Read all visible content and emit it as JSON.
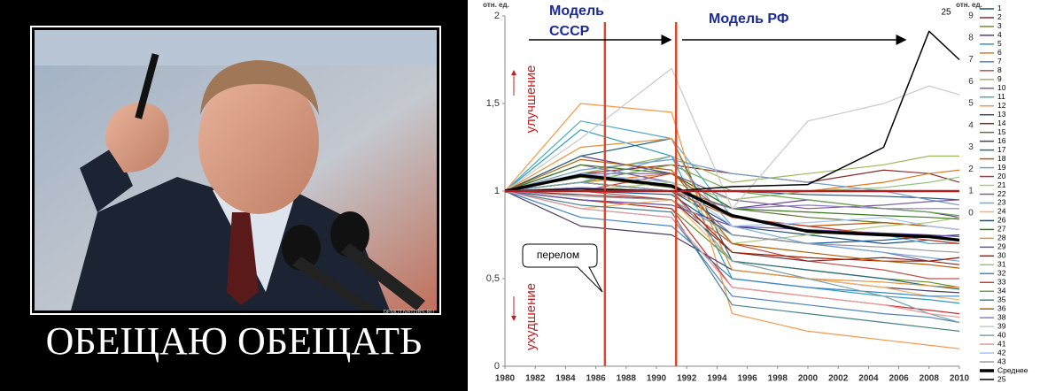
{
  "poster": {
    "caption": "ОБЕЩАЮ ОБЕЩАТЬ",
    "watermark": "DEMOTIVATORS.RU"
  },
  "chart_data": {
    "type": "line",
    "y_axis_label": "отн. ед.",
    "y2_axis_label": "отн. ед.",
    "annotations": {
      "model_ussr_1": "Модель",
      "model_ussr_2": "СССР",
      "model_rf": "Модель РФ",
      "better": "улучшение",
      "worse": "ухудшение",
      "turn": "перелом"
    },
    "x": [
      1980,
      1985,
      1991,
      1995,
      2000,
      2005,
      2008,
      2010
    ],
    "xlim": [
      1980,
      2010
    ],
    "xticks": [
      1980,
      1982,
      1984,
      1986,
      1988,
      1990,
      1992,
      1994,
      1996,
      1998,
      2000,
      2002,
      2004,
      2006,
      2008,
      2010
    ],
    "ylim": [
      0,
      2
    ],
    "yticks": [
      0,
      {
        "value": 0.5,
        "label": "0,5"
      },
      1,
      {
        "value": 1.5,
        "label": "1,5"
      },
      2
    ],
    "y2lim": [
      -7,
      9
    ],
    "y2ticks": [
      0,
      1,
      2,
      3,
      4,
      5,
      6,
      7,
      8,
      9
    ],
    "vlines": [
      1986.6,
      1991.3
    ],
    "vline_color": "#d9492a",
    "hline": 1,
    "hline_color": "#b02020",
    "series": [
      {
        "name": "1",
        "color": "#1f4e79",
        "values": [
          1,
          1.05,
          1.0,
          0.8,
          0.75,
          0.7,
          0.72,
          0.7
        ]
      },
      {
        "name": "2",
        "color": "#8b2a2a",
        "values": [
          1,
          1.1,
          1.15,
          1.1,
          1.05,
          1.12,
          1.1,
          1.05
        ]
      },
      {
        "name": "3",
        "color": "#6b8e23",
        "values": [
          1,
          0.95,
          0.9,
          0.6,
          0.55,
          0.5,
          0.48,
          0.45
        ]
      },
      {
        "name": "4",
        "color": "#5b3a8c",
        "values": [
          1,
          1.2,
          1.1,
          0.9,
          0.95,
          0.9,
          0.88,
          0.85
        ]
      },
      {
        "name": "5",
        "color": "#2e9bbf",
        "values": [
          1,
          1.35,
          1.2,
          0.5,
          0.45,
          0.4,
          0.38,
          0.36
        ]
      },
      {
        "name": "6",
        "color": "#e07b20",
        "values": [
          1,
          1.05,
          1.1,
          0.95,
          1.0,
          1.05,
          1.1,
          1.12
        ]
      },
      {
        "name": "7",
        "color": "#4f81bd",
        "values": [
          1,
          0.9,
          0.85,
          0.4,
          0.35,
          0.3,
          0.28,
          0.25
        ]
      },
      {
        "name": "8",
        "color": "#c0504d",
        "values": [
          1,
          1.0,
          0.95,
          0.7,
          0.6,
          0.55,
          0.5,
          0.5
        ]
      },
      {
        "name": "9",
        "color": "#9bbb59",
        "values": [
          1,
          1.1,
          1.2,
          1.05,
          1.1,
          1.15,
          1.2,
          1.2
        ]
      },
      {
        "name": "10",
        "color": "#8064a2",
        "values": [
          1,
          1.15,
          1.05,
          0.75,
          0.7,
          0.65,
          0.6,
          0.62
        ]
      },
      {
        "name": "11",
        "color": "#4bacc6",
        "values": [
          1,
          1.4,
          1.3,
          0.85,
          0.8,
          0.75,
          0.7,
          0.7
        ]
      },
      {
        "name": "12",
        "color": "#f79646",
        "values": [
          1,
          1.5,
          1.45,
          0.3,
          0.2,
          0.15,
          0.12,
          0.1
        ]
      },
      {
        "name": "13",
        "color": "#2c4d75",
        "values": [
          1,
          1.02,
          1.0,
          1.0,
          0.98,
          0.97,
          0.96,
          0.95
        ]
      },
      {
        "name": "14",
        "color": "#772c2a",
        "values": [
          1,
          0.98,
          0.95,
          0.65,
          0.6,
          0.62,
          0.6,
          0.58
        ]
      },
      {
        "name": "15",
        "color": "#5f7530",
        "values": [
          1,
          1.08,
          1.02,
          0.9,
          0.85,
          0.82,
          0.8,
          0.78
        ]
      },
      {
        "name": "16",
        "color": "#4d3b62",
        "values": [
          1,
          0.8,
          0.75,
          0.55,
          0.5,
          0.45,
          0.43,
          0.42
        ]
      },
      {
        "name": "17",
        "color": "#276a7c",
        "values": [
          1,
          1.2,
          1.3,
          0.6,
          0.55,
          0.5,
          0.46,
          0.44
        ]
      },
      {
        "name": "18",
        "color": "#b65708",
        "values": [
          1,
          1.05,
          1.0,
          0.85,
          0.8,
          0.82,
          0.8,
          0.78
        ]
      },
      {
        "name": "19",
        "color": "#729aca",
        "values": [
          1,
          1.12,
          1.18,
          1.1,
          1.05,
          1.0,
          0.95,
          0.92
        ]
      },
      {
        "name": "20",
        "color": "#cd2e2e",
        "values": [
          1,
          0.95,
          0.9,
          0.45,
          0.4,
          0.35,
          0.32,
          0.3
        ]
      },
      {
        "name": "21",
        "color": "#afc97a",
        "values": [
          1,
          1.0,
          1.05,
          0.7,
          0.75,
          0.8,
          0.82,
          0.85
        ]
      },
      {
        "name": "22",
        "color": "#7a5e9e",
        "values": [
          1,
          1.1,
          1.1,
          0.95,
          0.9,
          0.92,
          0.94,
          0.95
        ]
      },
      {
        "name": "23",
        "color": "#6fa8dc",
        "values": [
          1,
          1.05,
          1.2,
          0.8,
          0.7,
          0.65,
          0.62,
          0.6
        ]
      },
      {
        "name": "24",
        "color": "#f6b26b",
        "values": [
          1,
          0.9,
          0.95,
          0.6,
          0.5,
          0.45,
          0.4,
          0.38
        ]
      },
      {
        "name": "26",
        "color": "#0b5394",
        "values": [
          1,
          1.0,
          0.98,
          0.75,
          0.7,
          0.72,
          0.74,
          0.75
        ]
      },
      {
        "name": "27",
        "color": "#38761d",
        "values": [
          1,
          1.15,
          1.1,
          0.9,
          0.88,
          0.86,
          0.85,
          0.84
        ]
      },
      {
        "name": "28",
        "color": "#e69138",
        "values": [
          1,
          1.25,
          1.3,
          0.55,
          0.5,
          0.48,
          0.46,
          0.45
        ]
      },
      {
        "name": "29",
        "color": "#674ea7",
        "values": [
          1,
          0.95,
          0.92,
          0.8,
          0.78,
          0.76,
          0.75,
          0.74
        ]
      },
      {
        "name": "30",
        "color": "#a61c00",
        "values": [
          1,
          1.05,
          1.0,
          0.65,
          0.62,
          0.6,
          0.6,
          0.62
        ]
      },
      {
        "name": "31",
        "color": "#93c47d",
        "values": [
          1,
          1.1,
          1.05,
          0.95,
          1.0,
          1.02,
          1.05,
          1.08
        ]
      },
      {
        "name": "32",
        "color": "#3d85c6",
        "values": [
          1,
          0.85,
          0.8,
          0.5,
          0.45,
          0.42,
          0.4,
          0.4
        ]
      },
      {
        "name": "33",
        "color": "#cc4125",
        "values": [
          1,
          1.0,
          1.1,
          0.85,
          0.8,
          0.75,
          0.72,
          0.7
        ]
      },
      {
        "name": "34",
        "color": "#6aa84f",
        "values": [
          1,
          1.05,
          1.15,
          1.0,
          0.95,
          0.9,
          0.88,
          0.86
        ]
      },
      {
        "name": "35",
        "color": "#45818e",
        "values": [
          1,
          0.92,
          0.88,
          0.35,
          0.3,
          0.25,
          0.22,
          0.2
        ]
      },
      {
        "name": "36",
        "color": "#b45f06",
        "values": [
          1,
          1.18,
          1.12,
          0.7,
          0.65,
          0.6,
          0.58,
          0.56
        ]
      },
      {
        "name": "38",
        "color": "#8e7cc3",
        "values": [
          1,
          1.02,
          1.0,
          0.9,
          0.92,
          0.9,
          0.9,
          0.9
        ]
      },
      {
        "name": "39",
        "color": "#c9c9c9",
        "values": [
          1,
          1.3,
          1.7,
          0.9,
          1.4,
          1.5,
          1.6,
          1.55
        ]
      },
      {
        "name": "40",
        "color": "#76a5af",
        "values": [
          1,
          1.05,
          1.0,
          0.6,
          0.5,
          0.4,
          0.3,
          0.25
        ]
      },
      {
        "name": "41",
        "color": "#ea9999",
        "values": [
          1,
          0.9,
          0.85,
          0.45,
          0.4,
          0.35,
          0.3,
          0.28
        ]
      },
      {
        "name": "42",
        "color": "#a4c2f4",
        "values": [
          1,
          1.1,
          1.05,
          0.8,
          0.82,
          0.85,
          0.8,
          0.78
        ]
      },
      {
        "name": "43",
        "color": "#999999",
        "values": [
          1,
          0.97,
          0.95,
          0.75,
          0.7,
          0.68,
          0.66,
          0.65
        ]
      },
      {
        "name": "Среднее",
        "color": "#000000",
        "line_width": 3.5,
        "values": [
          1,
          1.09,
          1.03,
          0.86,
          0.77,
          0.75,
          0.74,
          0.72
        ]
      },
      {
        "name": "25",
        "color": "#000000",
        "line_width": 1.5,
        "axis": "y2",
        "values": [
          1,
          1.1,
          1.0,
          1.2,
          1.3,
          3.0,
          8.3,
          7.0
        ]
      }
    ]
  }
}
